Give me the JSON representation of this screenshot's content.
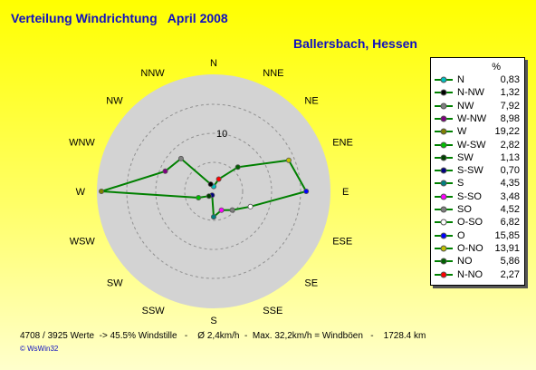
{
  "header": {
    "title": "Verteilung Windrichtung   April 2008",
    "location": "Ballersbach, Hessen"
  },
  "chart_data": {
    "type": "radar",
    "directions": [
      "N",
      "NNE",
      "NE",
      "ENE",
      "E",
      "ESE",
      "SE",
      "SSE",
      "S",
      "SSW",
      "SW",
      "WSW",
      "W",
      "WNW",
      "NW",
      "NNW"
    ],
    "values": [
      0.83,
      2.27,
      5.86,
      13.91,
      15.85,
      6.82,
      4.52,
      3.48,
      4.35,
      0.7,
      1.13,
      2.82,
      19.22,
      8.98,
      7.92,
      1.32
    ],
    "rlim": [
      0,
      20
    ],
    "ring_label": "10",
    "series_color": "#008000",
    "disc_color": "#d3d3d3"
  },
  "legend": {
    "unit": "%",
    "items": [
      {
        "name": "N",
        "value": "0,83",
        "color": "#00c0c0",
        "open": false
      },
      {
        "name": "N-NW",
        "value": "1,32",
        "color": "#000000",
        "open": false
      },
      {
        "name": "NW",
        "value": "7,92",
        "color": "#808080",
        "open": false
      },
      {
        "name": "W-NW",
        "value": "8,98",
        "color": "#800080",
        "open": false
      },
      {
        "name": "W",
        "value": "19,22",
        "color": "#808000",
        "open": false
      },
      {
        "name": "W-SW",
        "value": "2,82",
        "color": "#00c000",
        "open": false
      },
      {
        "name": "SW",
        "value": "1,13",
        "color": "#004000",
        "open": false
      },
      {
        "name": "S-SW",
        "value": "0,70",
        "color": "#000080",
        "open": false
      },
      {
        "name": "S",
        "value": "4,35",
        "color": "#008080",
        "open": false
      },
      {
        "name": "S-SO",
        "value": "3,48",
        "color": "#ff00ff",
        "open": false
      },
      {
        "name": "SO",
        "value": "4,52",
        "color": "#808080",
        "open": false
      },
      {
        "name": "O-SO",
        "value": "6,82",
        "color": "#008000",
        "open": true
      },
      {
        "name": "O",
        "value": "15,85",
        "color": "#0000ff",
        "open": false
      },
      {
        "name": "O-NO",
        "value": "13,91",
        "color": "#c0c000",
        "open": false
      },
      {
        "name": "NO",
        "value": "5,86",
        "color": "#006000",
        "open": false
      },
      {
        "name": "N-NO",
        "value": "2,27",
        "color": "#ff0000",
        "open": false
      }
    ]
  },
  "footer": {
    "stats": "4708 / 3925 Werte  -> 45.5% Windstille   -    Ø 2,4km/h  -  Max. 32,2km/h = Windböen   -    1728.4 km",
    "credit": "© WsWin32"
  }
}
